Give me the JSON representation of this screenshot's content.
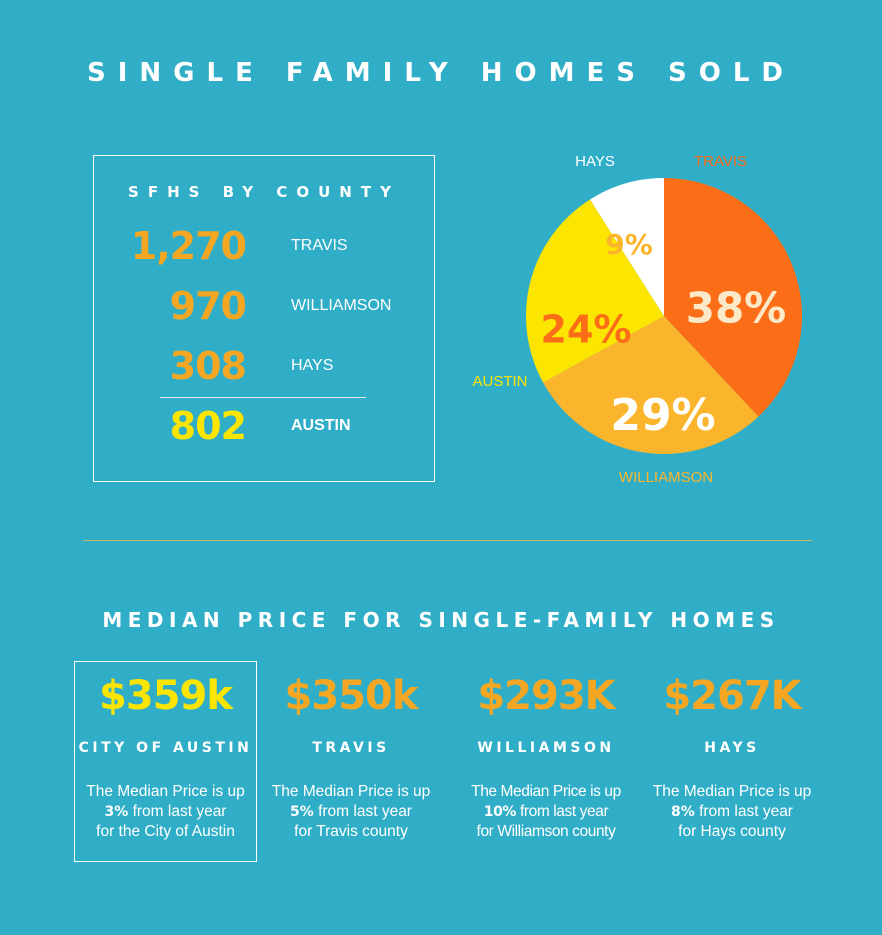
{
  "title": "SINGLE FAMILY HOMES SOLD",
  "county_table": {
    "title": "SFHS BY COUNTY",
    "rows": [
      {
        "value": "1,270",
        "name": "TRAVIS",
        "color": "#f5a623"
      },
      {
        "value": "970",
        "name": "WILLIAMSON",
        "color": "#f5a623"
      },
      {
        "value": "308",
        "name": "HAYS",
        "color": "#f5a623"
      },
      {
        "value": "802",
        "name": "AUSTIN",
        "color": "#fce500"
      }
    ]
  },
  "section2_title": "MEDIAN PRICE FOR SINGLE-FAMILY HOMES",
  "prices": [
    {
      "value": "$359k",
      "name": "CITY OF AUSTIN",
      "line1": "The Median Price is up",
      "pct": "3%",
      "line2_rest": " from last year",
      "line3": "for the City of Austin",
      "color": "#fce500"
    },
    {
      "value": "$350k",
      "name": "TRAVIS",
      "line1": "The Median Price is up",
      "pct": "5%",
      "line2_rest": " from last year",
      "line3": "for Travis county",
      "color": "#f5a623"
    },
    {
      "value": "$293K",
      "name": "WILLIAMSON",
      "line1": "The Median Price is up",
      "pct": "10%",
      "line2_rest": " from last year",
      "line3": "for Williamson county",
      "color": "#f5a623"
    },
    {
      "value": "$267K",
      "name": "HAYS",
      "line1": "The Median Price is up",
      "pct": "8%",
      "line2_rest": "  from last year",
      "line3": "for Hays county",
      "color": "#f5a623"
    }
  ],
  "chart_data": {
    "type": "pie",
    "title": "",
    "slices": [
      {
        "label": "TRAVIS",
        "value": 38,
        "display": "38%",
        "color": "#fb6e17",
        "label_color": "#fb6e17",
        "text_color": "#fce9c8"
      },
      {
        "label": "WILLIAMSON",
        "value": 29,
        "display": "29%",
        "color": "#fbb52c",
        "label_color": "#fbb52c",
        "text_color": "#ffffff"
      },
      {
        "label": "AUSTIN",
        "value": 24,
        "display": "24%",
        "color": "#fce500",
        "label_color": "#fce500",
        "text_color": "#fb6e17"
      },
      {
        "label": "HAYS",
        "value": 9,
        "display": "9%",
        "color": "#ffffff",
        "label_color": "#ffffff",
        "text_color": "#fbb52c"
      }
    ]
  }
}
